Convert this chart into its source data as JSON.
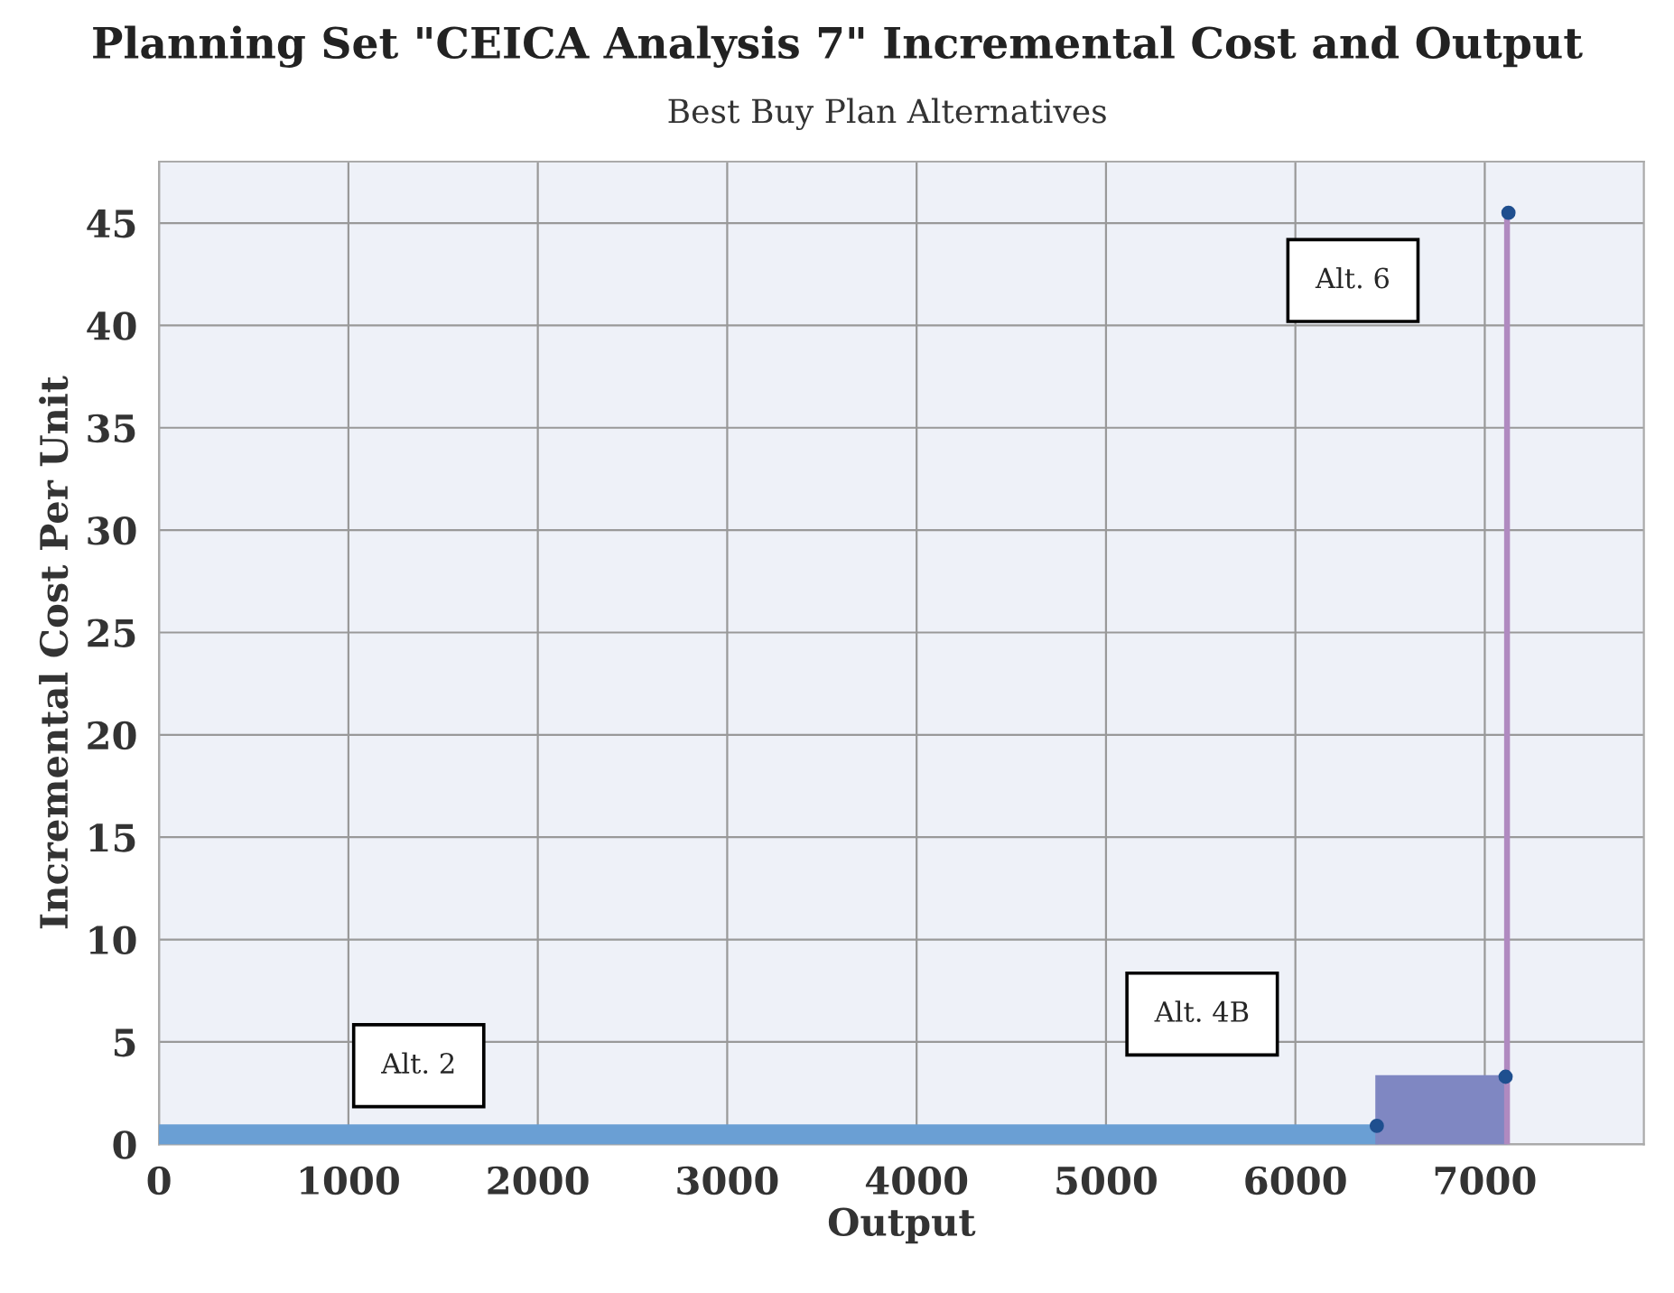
{
  "chart_data": {
    "type": "histogram",
    "title": "Planning Set \"CEICA Analysis 7\" Incremental Cost and Output",
    "subtitle": "Best Buy Plan Alternatives",
    "xlabel": "Output",
    "ylabel": "Incremental Cost Per Unit",
    "bins": [
      0,
      6430,
      7110,
      7125
    ],
    "values": [
      0.9,
      3.3,
      45.5
    ],
    "colors": [
      "#6a9fd4",
      "#7f87c2",
      "#b08ac0"
    ],
    "series": [
      {
        "type": "scatter",
        "color": "#1f4f8f",
        "x": [
          6430,
          7110,
          7125
        ],
        "values": [
          0.9,
          3.3,
          45.5
        ]
      }
    ],
    "xlim": [
      0,
      7840
    ],
    "ylim": [
      0,
      48
    ],
    "xticks": [
      0,
      1000,
      2000,
      3000,
      4000,
      5000,
      6000,
      7000
    ],
    "yticks": [
      0,
      5,
      10,
      15,
      20,
      25,
      30,
      35,
      40,
      45
    ],
    "grid": true,
    "annotations": [
      "Alt. 2",
      "Alt. 4B",
      "Alt. 6"
    ]
  }
}
